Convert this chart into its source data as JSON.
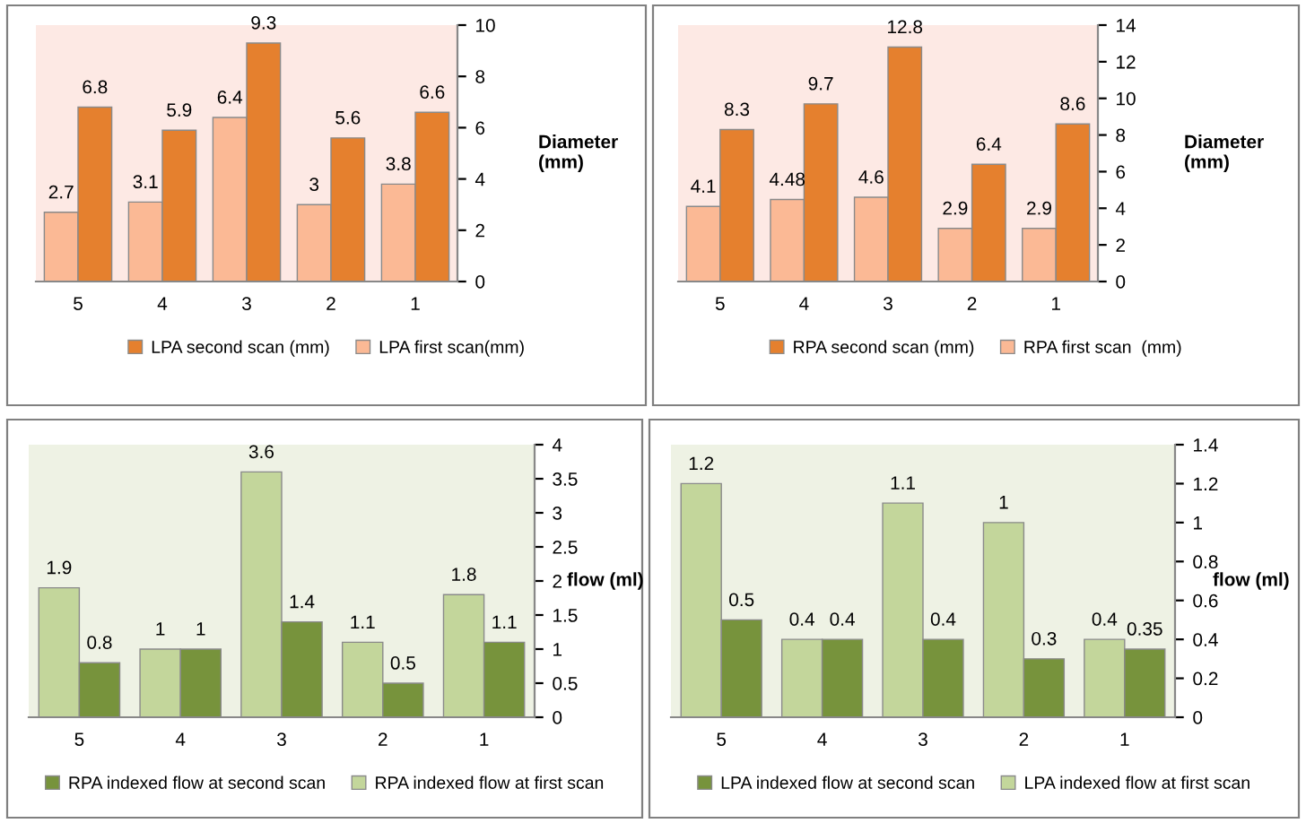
{
  "chart_data": [
    {
      "type": "bar",
      "categories": [
        "5",
        "4",
        "3",
        "2",
        "1"
      ],
      "ylabel": "Diameter\n(mm)",
      "ylim": [
        0,
        10
      ],
      "yticks": [
        0,
        2,
        4,
        6,
        8,
        10
      ],
      "data_labels": true,
      "legend": "bottom",
      "series": [
        {
          "name": "LPA first scan(mm)",
          "color": "#fbb995",
          "values": [
            2.7,
            3.1,
            6.4,
            3,
            3.8
          ]
        },
        {
          "name": "LPA second scan (mm)",
          "color": "#e5802e",
          "values": [
            6.8,
            5.9,
            9.3,
            5.6,
            6.6
          ]
        }
      ]
    },
    {
      "type": "bar",
      "categories": [
        "5",
        "4",
        "3",
        "2",
        "1"
      ],
      "ylabel": "Diameter\n(mm)",
      "ylim": [
        0,
        14
      ],
      "yticks": [
        0,
        2,
        4,
        6,
        8,
        10,
        12,
        14
      ],
      "data_labels": true,
      "legend": "bottom",
      "series": [
        {
          "name": "RPA first scan  (mm)",
          "color": "#fbb995",
          "values": [
            4.1,
            4.48,
            4.6,
            2.9,
            2.9
          ]
        },
        {
          "name": "RPA second scan (mm)",
          "color": "#e5802e",
          "values": [
            8.3,
            9.7,
            12.8,
            6.4,
            8.6
          ]
        }
      ]
    },
    {
      "type": "bar",
      "categories": [
        "5",
        "4",
        "3",
        "2",
        "1"
      ],
      "ylabel": "flow (ml)",
      "ylim": [
        0,
        4
      ],
      "yticks": [
        0,
        0.5,
        1,
        1.5,
        2,
        2.5,
        3,
        3.5,
        4
      ],
      "data_labels": true,
      "legend": "bottom",
      "series": [
        {
          "name": "RPA indexed flow at first scan",
          "color": "#c3d69b",
          "values": [
            1.9,
            1,
            3.6,
            1.1,
            1.8
          ]
        },
        {
          "name": "RPA indexed flow at second scan",
          "color": "#77933c",
          "values": [
            0.8,
            1,
            1.4,
            0.5,
            1.1
          ]
        }
      ]
    },
    {
      "type": "bar",
      "categories": [
        "5",
        "4",
        "3",
        "2",
        "1"
      ],
      "ylabel": "flow (ml)",
      "ylim": [
        0,
        1.4
      ],
      "yticks": [
        0,
        0.2,
        0.4,
        0.6,
        0.8,
        1,
        1.2,
        1.4
      ],
      "data_labels": true,
      "legend": "bottom",
      "series": [
        {
          "name": "LPA indexed flow at first scan",
          "color": "#c3d69b",
          "values": [
            1.2,
            0.4,
            1.1,
            1,
            0.4
          ]
        },
        {
          "name": "LPA indexed flow at second scan",
          "color": "#77933c",
          "values": [
            0.5,
            0.4,
            0.4,
            0.3,
            0.35
          ]
        }
      ]
    }
  ]
}
